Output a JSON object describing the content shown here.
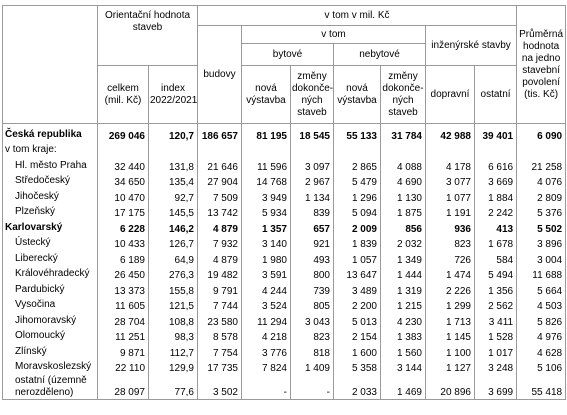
{
  "header": {
    "orientacni": "Orientační hodnota staveb",
    "v_tom_mil": "v tom v mil. Kč",
    "v_tom": "v tom",
    "budovy": "budovy",
    "bytove": "bytové",
    "nebytove": "nebytové",
    "inzenyrske": "inženýrské stavby",
    "prumerna": [
      "Průměrná",
      "hodnota",
      "na jedno",
      "stavební",
      "povolení",
      "(tis. Kč)"
    ],
    "celkem": [
      "celkem",
      "(mil. Kč)"
    ],
    "index": [
      "index",
      "2022/2021"
    ],
    "nova_vystavba_1": [
      "nová",
      "výstavba"
    ],
    "zmeny_1": [
      "změny",
      "dokonče-",
      "ných",
      "staveb"
    ],
    "nova_vystavba_2": [
      "nová",
      "výstavba"
    ],
    "zmeny_2": [
      "změny",
      "dokonče-",
      "ných",
      "staveb"
    ],
    "dopravni": "dopravní",
    "ostatni": "ostatní"
  },
  "table": {
    "rows": [
      {
        "label": [
          "Česká republika"
        ],
        "bold": true,
        "cells": [
          "269 046",
          "120,7",
          "186 657",
          "81 195",
          "18 545",
          "55 133",
          "31 784",
          "42 988",
          "39 401",
          "6 090"
        ]
      },
      {
        "label": [
          "v tom kraje:"
        ],
        "bold": false,
        "cells": []
      },
      {
        "label": [
          "Hl. město Praha"
        ],
        "bold": false,
        "cells": [
          "32 440",
          "131,8",
          "21 646",
          "11 596",
          "3 097",
          "2 865",
          "4 088",
          "4 178",
          "6 616",
          "21 258"
        ]
      },
      {
        "label": [
          "Středočeský"
        ],
        "bold": false,
        "cells": [
          "34 650",
          "135,4",
          "27 904",
          "14 768",
          "2 967",
          "5 479",
          "4 690",
          "3 077",
          "3 669",
          "4 076"
        ]
      },
      {
        "label": [
          "Jihočeský"
        ],
        "bold": false,
        "cells": [
          "10 470",
          "92,7",
          "7 509",
          "3 949",
          "1 134",
          "1 296",
          "1 130",
          "1 077",
          "1 884",
          "2 809"
        ]
      },
      {
        "label": [
          "Plzeňský"
        ],
        "bold": false,
        "cells": [
          "17 175",
          "145,5",
          "13 742",
          "5 934",
          "839",
          "5 094",
          "1 875",
          "1 191",
          "2 242",
          "5 376"
        ]
      },
      {
        "label": [
          "Karlovarský"
        ],
        "bold": true,
        "cells": [
          "6 228",
          "146,2",
          "4 879",
          "1 357",
          "657",
          "2 009",
          "856",
          "936",
          "413",
          "5 502"
        ]
      },
      {
        "label": [
          "Ústecký"
        ],
        "bold": false,
        "cells": [
          "10 433",
          "126,7",
          "7 932",
          "3 140",
          "921",
          "1 839",
          "2 032",
          "823",
          "1 678",
          "3 896"
        ]
      },
      {
        "label": [
          "Liberecký"
        ],
        "bold": false,
        "cells": [
          "6 189",
          "64,9",
          "4 879",
          "1 980",
          "493",
          "1 057",
          "1 349",
          "726",
          "584",
          "3 004"
        ]
      },
      {
        "label": [
          "Královéhradecký"
        ],
        "bold": false,
        "cells": [
          "26 450",
          "276,3",
          "19 482",
          "3 591",
          "800",
          "13 647",
          "1 444",
          "1 474",
          "5 494",
          "11 688"
        ]
      },
      {
        "label": [
          "Pardubický"
        ],
        "bold": false,
        "cells": [
          "13 373",
          "155,8",
          "9 791",
          "4 244",
          "739",
          "3 489",
          "1 319",
          "2 226",
          "1 356",
          "5 664"
        ]
      },
      {
        "label": [
          "Vysočina"
        ],
        "bold": false,
        "cells": [
          "11 605",
          "121,5",
          "7 744",
          "3 524",
          "805",
          "2 200",
          "1 215",
          "1 299",
          "2 562",
          "4 503"
        ]
      },
      {
        "label": [
          "Jihomoravský"
        ],
        "bold": false,
        "cells": [
          "28 704",
          "108,8",
          "23 580",
          "11 294",
          "3 043",
          "5 013",
          "4 230",
          "1 713",
          "3 411",
          "5 826"
        ]
      },
      {
        "label": [
          "Olomoucký"
        ],
        "bold": false,
        "cells": [
          "11 251",
          "98,3",
          "8 578",
          "4 218",
          "823",
          "2 154",
          "1 383",
          "1 145",
          "1 528",
          "4 976"
        ]
      },
      {
        "label": [
          "Zlínský"
        ],
        "bold": false,
        "cells": [
          "9 871",
          "112,7",
          "7 754",
          "3 776",
          "818",
          "1 600",
          "1 560",
          "1 100",
          "1 017",
          "4 628"
        ]
      },
      {
        "label": [
          "Moravskoslezský"
        ],
        "bold": false,
        "cells": [
          "22 110",
          "129,9",
          "17 735",
          "7 824",
          "1 409",
          "5 358",
          "3 144",
          "1 127",
          "3 248",
          "5 106"
        ]
      },
      {
        "label": [
          "ostatní (územně",
          "nerozděleno)"
        ],
        "bold": false,
        "cells": [
          "28 097",
          "77,6",
          "3 502",
          "-",
          "-",
          "2 033",
          "1 469",
          "20 896",
          "3 699",
          "55 418"
        ]
      }
    ]
  }
}
